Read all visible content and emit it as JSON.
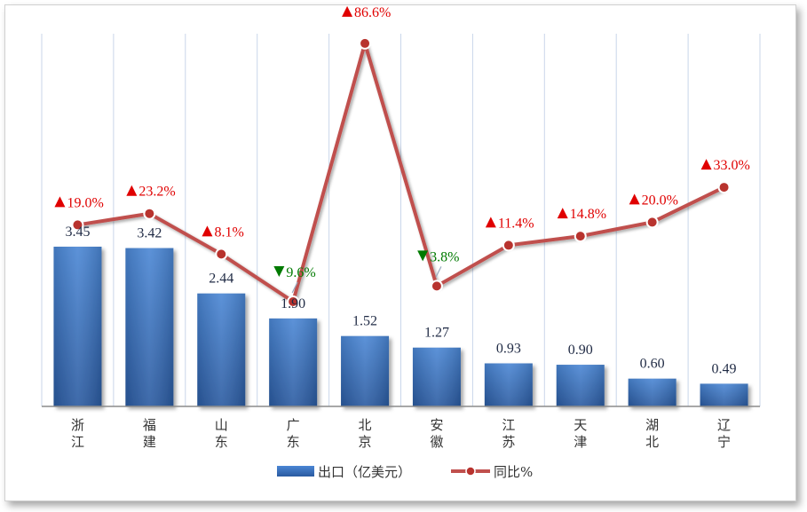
{
  "chart_data": {
    "type": "bar",
    "categories": [
      "浙\n江",
      "福\n建",
      "山\n东",
      "广\n东",
      "北\n京",
      "安\n徽",
      "江\n苏",
      "天\n津",
      "湖\n北",
      "辽\n宁"
    ],
    "series": [
      {
        "name": "出口（亿美元）",
        "type": "bar",
        "values": [
          3.45,
          3.42,
          2.44,
          1.9,
          1.52,
          1.27,
          0.93,
          0.9,
          0.6,
          0.49
        ],
        "labels": [
          "3.45",
          "3.42",
          "2.44",
          "1.90",
          "1.52",
          "1.27",
          "0.93",
          "0.90",
          "0.60",
          "0.49"
        ],
        "color": "#3a6fbd"
      },
      {
        "name": "同比%",
        "type": "line",
        "values": [
          19.0,
          23.2,
          8.1,
          -9.6,
          86.6,
          -3.8,
          11.4,
          14.8,
          20.0,
          33.0
        ],
        "labels": [
          "19.0%",
          "23.2%",
          "8.1%",
          "9.6%",
          "86.6%",
          "3.8%",
          "11.4%",
          "14.8%",
          "20.0%",
          "33.0%"
        ],
        "color": "#c0504d"
      }
    ],
    "up_color": "#e00000",
    "down_color": "#007a00",
    "grid": true,
    "legend_position": "bottom"
  },
  "legend": {
    "bar_label": "出口（亿美元）",
    "line_label": "同比%"
  }
}
